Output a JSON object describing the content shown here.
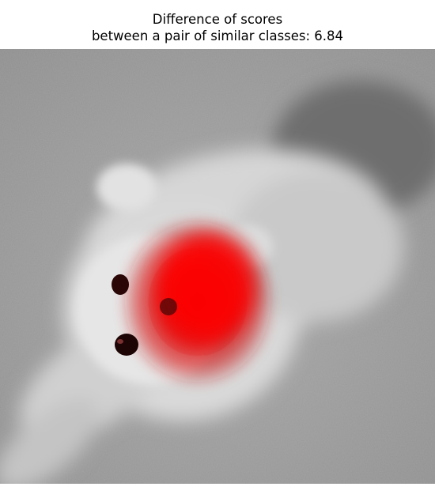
{
  "figure": {
    "title_line1": "Difference of scores",
    "title_line2": "between a pair of similar classes: 6.84"
  },
  "image": {
    "subject": "grayscale photo of a small fluffy white dog (Pomeranian-like) lying on a carpet",
    "overlay": "red saliency heatmap centered on the dog's face",
    "overlay_color": "#ff0000"
  }
}
